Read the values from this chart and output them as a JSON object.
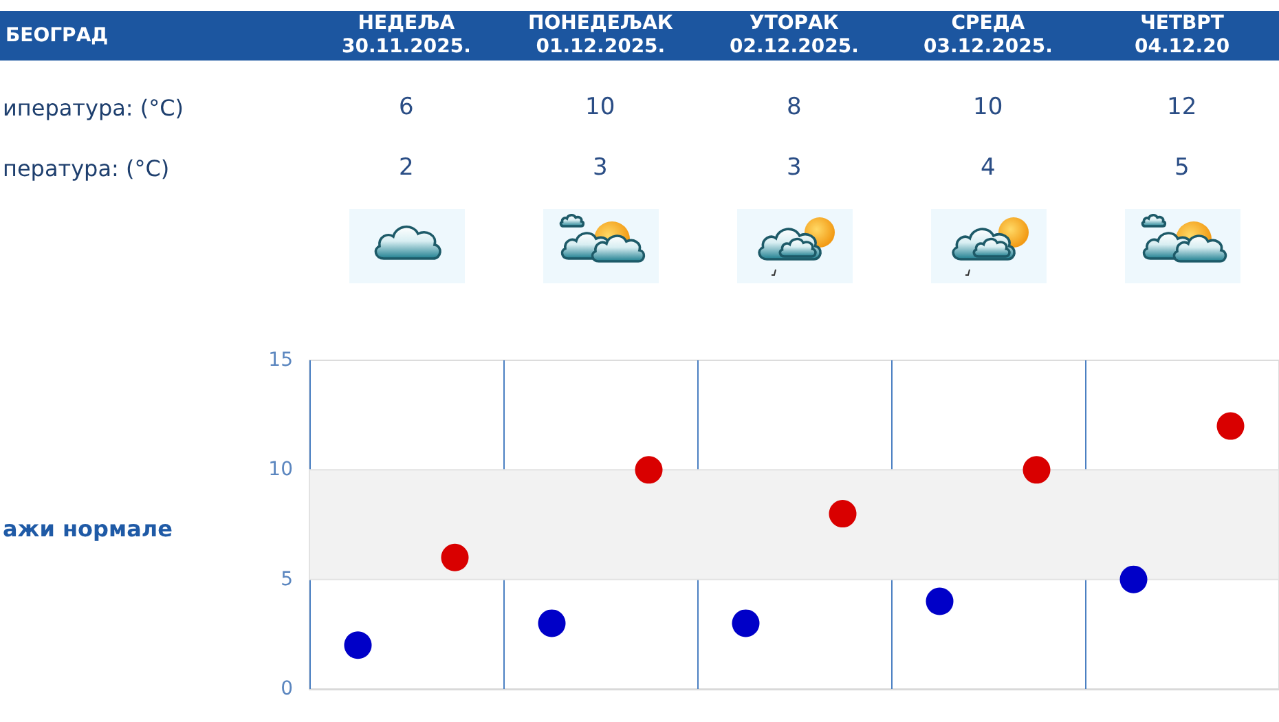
{
  "chart_data": {
    "type": "scatter",
    "title": "БЕОГРАД",
    "categories": [
      null,
      null,
      null,
      null,
      null
    ],
    "series": [
      {
        "color": "#d90000",
        "values": [
          6,
          10,
          8,
          10,
          12
        ],
        "value_labels": [
          "6",
          "10",
          "8",
          "10",
          "12"
        ]
      },
      {
        "color": "#0000c8",
        "values": [
          2,
          3,
          3,
          4,
          5
        ],
        "value_labels": [
          "2",
          "3",
          "3",
          "4",
          "5"
        ]
      }
    ],
    "ylim": [
      0,
      15
    ],
    "yticks": [
      0,
      5,
      10,
      15
    ],
    "grid": "x",
    "marker": "circle",
    "bands": [
      {
        "axis": "y",
        "from": 5,
        "to": 10,
        "color": "#f2f2f2"
      }
    ],
    "annotations": [
      "НЕДЕЉА\n30.11.2025.",
      "ПОНЕДЕЉАК\n01.12.2025.",
      "УТОРАК\n02.12.2025.",
      "СРЕДА\n03.12.2025.",
      "ЧЕТВРТ\n04.12.20",
      "ипература: (°C)",
      "пература: (°C)",
      "ажи нормале"
    ]
  }
}
